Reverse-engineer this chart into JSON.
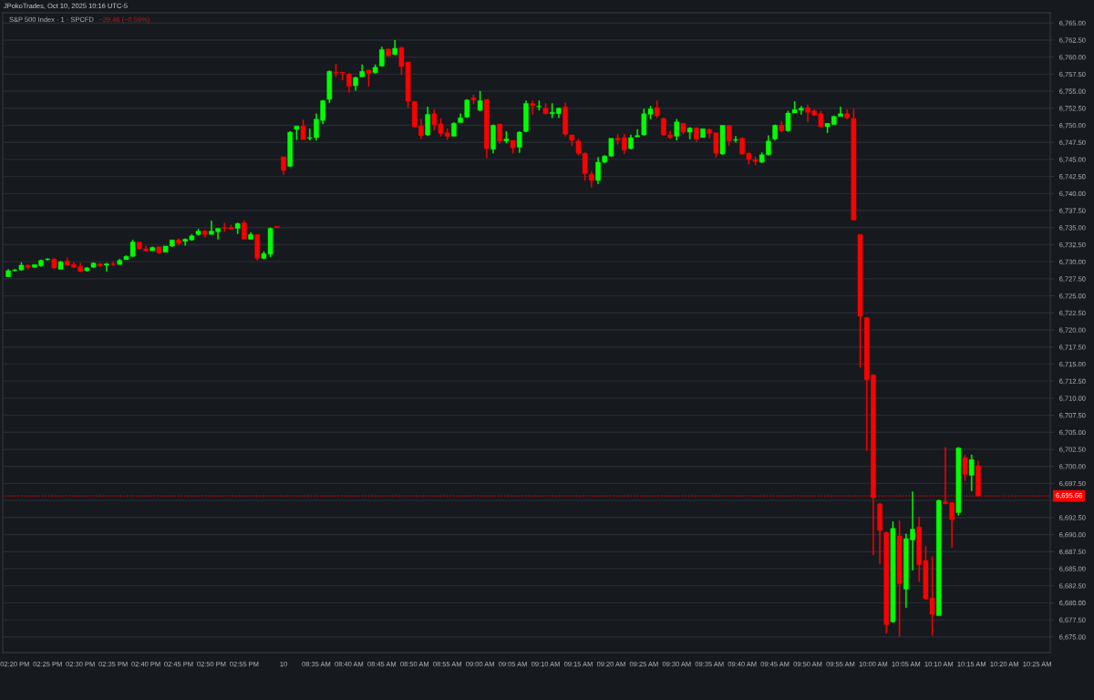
{
  "chart_data": {
    "type": "candlestick",
    "title": "S&P 500 Index · 1 · SPCFD",
    "subtitle": "−39.46 (−0.59%)",
    "annotations": [
      "JPokoTrades, Oct 10, 2025 10:16 UTC-5"
    ],
    "categories": [
      null,
      "02:20 PM",
      null,
      null,
      null,
      null,
      "02:25 PM",
      null,
      null,
      null,
      null,
      "02:30 PM",
      null,
      null,
      null,
      null,
      "02:35 PM",
      null,
      null,
      null,
      null,
      "02:40 PM",
      null,
      null,
      null,
      null,
      "02:45 PM",
      null,
      null,
      null,
      null,
      "02:50 PM",
      null,
      null,
      null,
      null,
      "02:55 PM",
      null,
      null,
      null,
      null,
      null,
      "10",
      null,
      null,
      null,
      null,
      "08:35 AM",
      null,
      null,
      null,
      null,
      "08:40 AM",
      null,
      null,
      null,
      null,
      "08:45 AM",
      null,
      null,
      null,
      null,
      "08:50 AM",
      null,
      null,
      null,
      null,
      "08:55 AM",
      null,
      null,
      null,
      null,
      "09:00 AM",
      null,
      null,
      null,
      null,
      "09:05 AM",
      null,
      null,
      null,
      null,
      "09:10 AM",
      null,
      null,
      null,
      null,
      "09:15 AM",
      null,
      null,
      null,
      null,
      "09:20 AM",
      null,
      null,
      null,
      null,
      "09:25 AM",
      null,
      null,
      null,
      null,
      "09:30 AM",
      null,
      null,
      null,
      null,
      "09:35 AM",
      null,
      null,
      null,
      null,
      "09:40 AM",
      null,
      null,
      null,
      null,
      "09:45 AM",
      null,
      null,
      null,
      null,
      "09:50 AM",
      null,
      null,
      null,
      null,
      "09:55 AM",
      null,
      null,
      null,
      null,
      "10:00 AM",
      null,
      null,
      null,
      null,
      "10:05 AM",
      null,
      null,
      null,
      null,
      "10:10 AM",
      null,
      null,
      null,
      null,
      "10:15 AM",
      null,
      null,
      null,
      null,
      "10:20 AM",
      null,
      null,
      null,
      null,
      "10:25 AM",
      null,
      null
    ],
    "ohlc": [
      [
        6727.8,
        6728.9,
        6727.8,
        6728.7
      ],
      [
        6728.7,
        6728.9,
        6728.6,
        6728.8
      ],
      [
        6728.8,
        6729.9,
        6728.7,
        6729.5
      ],
      [
        6729.5,
        6729.6,
        6728.9,
        6729.2
      ],
      [
        6729.2,
        6729.6,
        6729.1,
        6729.6
      ],
      [
        6729.4,
        6730.3,
        6729.3,
        6730.2
      ],
      [
        6730.3,
        6730.5,
        6730.2,
        6730.4
      ],
      [
        6730.4,
        6730.5,
        6729.0,
        6729.1
      ],
      [
        6728.9,
        6730.1,
        6728.9,
        6730.0
      ],
      [
        6730.1,
        6730.6,
        6729.4,
        6729.5
      ],
      [
        6729.6,
        6729.9,
        6729.1,
        6729.2
      ],
      [
        6729.3,
        6729.8,
        6728.5,
        6728.6
      ],
      [
        6728.7,
        6729.2,
        6728.6,
        6729.1
      ],
      [
        6729.2,
        6729.9,
        6729.1,
        6729.8
      ],
      [
        6729.7,
        6729.8,
        6729.3,
        6729.4
      ],
      [
        6729.5,
        6729.8,
        6728.6,
        6729.7
      ],
      [
        6729.7,
        6730.0,
        6729.4,
        6729.6
      ],
      [
        6729.6,
        6730.4,
        6729.6,
        6730.2
      ],
      [
        6730.3,
        6730.9,
        6730.3,
        6730.8
      ],
      [
        6730.8,
        6733.2,
        6730.7,
        6732.9
      ],
      [
        6732.9,
        6732.9,
        6731.8,
        6731.9
      ],
      [
        6731.9,
        6732.3,
        6731.5,
        6731.6
      ],
      [
        6731.6,
        6732.2,
        6731.6,
        6732.1
      ],
      [
        6732.2,
        6732.2,
        6731.2,
        6731.3
      ],
      [
        6731.4,
        6732.3,
        6731.4,
        6732.3
      ],
      [
        6732.3,
        6733.2,
        6732.2,
        6733.2
      ],
      [
        6733.2,
        6733.4,
        6732.4,
        6732.7
      ],
      [
        6733.0,
        6733.4,
        6732.4,
        6733.3
      ],
      [
        6733.2,
        6734.0,
        6733.1,
        6733.8
      ],
      [
        6734.0,
        6734.8,
        6733.9,
        6734.5
      ],
      [
        6734.5,
        6734.6,
        6733.6,
        6734.0
      ],
      [
        6734.0,
        6736.0,
        6734.0,
        6734.5
      ],
      [
        6734.4,
        6734.9,
        6733.3,
        6734.9
      ],
      [
        6735.0,
        6735.7,
        6734.4,
        6734.9
      ],
      [
        6735.0,
        6735.4,
        6734.7,
        6734.8
      ],
      [
        6734.9,
        6735.7,
        6734.1,
        6735.6
      ],
      [
        6735.7,
        6736.0,
        6733.3,
        6733.3
      ],
      [
        6733.3,
        6734.3,
        6733.3,
        6734.0
      ],
      [
        6734.0,
        6734.0,
        6730.2,
        6730.5
      ],
      [
        6730.5,
        6731.5,
        6730.4,
        6731.2
      ],
      [
        6731.1,
        6735.0,
        6730.7,
        6734.9
      ],
      [
        6735.2,
        6735.2,
        6735.0,
        6735.0
      ],
      [
        6745.4,
        6745.4,
        6742.8,
        6743.4
      ],
      [
        6744.0,
        6749.1,
        6743.9,
        6749.0
      ],
      [
        6749.4,
        6749.9,
        6747.9,
        6749.9
      ],
      [
        6749.9,
        6750.8,
        6747.9,
        6747.9
      ],
      [
        6748.1,
        6749.5,
        6747.8,
        6748.2
      ],
      [
        6748.2,
        6751.7,
        6747.8,
        6750.9
      ],
      [
        6750.7,
        6753.7,
        6750.2,
        6753.6
      ],
      [
        6753.8,
        6758.0,
        6753.3,
        6757.9
      ],
      [
        6757.8,
        6759.0,
        6757.1,
        6757.7
      ],
      [
        6757.8,
        6757.8,
        6756.6,
        6757.7
      ],
      [
        6757.5,
        6757.6,
        6754.8,
        6755.7
      ],
      [
        6755.8,
        6757.1,
        6755.1,
        6757.0
      ],
      [
        6757.1,
        6758.9,
        6757.1,
        6757.9
      ],
      [
        6758.1,
        6758.1,
        6755.7,
        6757.6
      ],
      [
        6757.7,
        6758.9,
        6757.6,
        6758.5
      ],
      [
        6758.7,
        6761.5,
        6758.6,
        6761.1
      ],
      [
        6761.2,
        6761.2,
        6760.1,
        6760.2
      ],
      [
        6760.4,
        6762.5,
        6760.3,
        6761.3
      ],
      [
        6761.4,
        6761.5,
        6757.4,
        6758.6
      ],
      [
        6759.3,
        6759.3,
        6752.6,
        6753.5
      ],
      [
        6753.5,
        6753.5,
        6749.7,
        6749.8
      ],
      [
        6749.9,
        6750.9,
        6748.0,
        6748.5
      ],
      [
        6748.6,
        6752.7,
        6748.5,
        6751.6
      ],
      [
        6751.7,
        6752.3,
        6749.3,
        6750.1
      ],
      [
        6750.2,
        6751.0,
        6748.4,
        6748.8
      ],
      [
        6748.9,
        6749.5,
        6747.9,
        6748.4
      ],
      [
        6748.4,
        6750.4,
        6748.4,
        6750.3
      ],
      [
        6750.4,
        6751.7,
        6750.4,
        6751.1
      ],
      [
        6751.2,
        6753.8,
        6751.1,
        6753.7
      ],
      [
        6754.0,
        6754.5,
        6753.1,
        6753.7
      ],
      [
        6752.2,
        6755.0,
        6752.1,
        6753.6
      ],
      [
        6753.8,
        6753.8,
        6745.2,
        6746.6
      ],
      [
        6746.5,
        6750.1,
        6745.9,
        6750.0
      ],
      [
        6750.2,
        6750.2,
        6747.3,
        6747.7
      ],
      [
        6747.7,
        6749.1,
        6747.4,
        6748.0
      ],
      [
        6747.8,
        6747.8,
        6745.9,
        6746.7
      ],
      [
        6746.8,
        6749.1,
        6746.0,
        6749.0
      ],
      [
        6749.1,
        6753.6,
        6749.0,
        6753.2
      ],
      [
        6753.2,
        6753.6,
        6751.6,
        6752.9
      ],
      [
        6752.7,
        6753.6,
        6752.2,
        6752.8
      ],
      [
        6752.5,
        6753.2,
        6751.6,
        6751.7
      ],
      [
        6751.7,
        6753.2,
        6751.1,
        6751.9
      ],
      [
        6751.7,
        6752.6,
        6751.1,
        6752.5
      ],
      [
        6752.7,
        6753.3,
        6748.4,
        6748.7
      ],
      [
        6748.6,
        6748.6,
        6747.0,
        6747.8
      ],
      [
        6747.7,
        6748.0,
        6745.6,
        6745.9
      ],
      [
        6745.9,
        6746.0,
        6741.9,
        6742.9
      ],
      [
        6742.8,
        6743.2,
        6740.9,
        6741.9
      ],
      [
        6741.9,
        6745.3,
        6741.4,
        6744.6
      ],
      [
        6744.6,
        6745.6,
        6744.5,
        6745.5
      ],
      [
        6745.5,
        6748.1,
        6745.4,
        6748.1
      ],
      [
        6748.1,
        6748.7,
        6747.2,
        6747.8
      ],
      [
        6748.2,
        6748.7,
        6745.8,
        6746.4
      ],
      [
        6746.6,
        6748.6,
        6746.5,
        6748.2
      ],
      [
        6748.3,
        6749.4,
        6748.3,
        6748.5
      ],
      [
        6748.6,
        6752.4,
        6748.5,
        6751.7
      ],
      [
        6751.6,
        6752.8,
        6750.9,
        6752.4
      ],
      [
        6752.6,
        6753.6,
        6751.1,
        6751.4
      ],
      [
        6751.0,
        6751.1,
        6748.5,
        6748.6
      ],
      [
        6748.6,
        6749.2,
        6748.0,
        6748.2
      ],
      [
        6748.4,
        6750.9,
        6747.8,
        6750.5
      ],
      [
        6750.3,
        6750.3,
        6748.7,
        6749.0
      ],
      [
        6749.0,
        6749.7,
        6748.0,
        6749.6
      ],
      [
        6749.6,
        6749.7,
        6747.6,
        6748.0
      ],
      [
        6748.2,
        6749.5,
        6748.2,
        6749.5
      ],
      [
        6749.4,
        6749.5,
        6748.1,
        6748.8
      ],
      [
        6748.9,
        6748.9,
        6745.3,
        6745.9
      ],
      [
        6745.8,
        6750.0,
        6745.7,
        6750.0
      ],
      [
        6750.0,
        6750.0,
        6747.0,
        6747.7
      ],
      [
        6747.8,
        6748.4,
        6747.5,
        6747.9
      ],
      [
        6748.1,
        6748.2,
        6745.7,
        6745.8
      ],
      [
        6745.9,
        6746.0,
        6744.3,
        6745.0
      ],
      [
        6745.0,
        6745.4,
        6744.2,
        6744.7
      ],
      [
        6744.6,
        6746.0,
        6744.5,
        6745.7
      ],
      [
        6745.7,
        6748.5,
        6745.6,
        6747.7
      ],
      [
        6748.0,
        6750.1,
        6747.8,
        6750.0
      ],
      [
        6750.0,
        6750.6,
        6749.0,
        6749.2
      ],
      [
        6749.2,
        6752.1,
        6749.1,
        6751.8
      ],
      [
        6751.8,
        6753.5,
        6751.8,
        6752.3
      ],
      [
        6752.2,
        6752.8,
        6751.6,
        6752.5
      ],
      [
        6752.6,
        6753.0,
        6750.5,
        6751.9
      ],
      [
        6752.1,
        6752.3,
        6751.4,
        6751.5
      ],
      [
        6751.7,
        6752.1,
        6749.7,
        6749.8
      ],
      [
        6749.8,
        6750.3,
        6748.9,
        6750.3
      ],
      [
        6750.1,
        6751.4,
        6750.1,
        6751.3
      ],
      [
        6751.3,
        6752.7,
        6751.3,
        6751.7
      ],
      [
        6751.7,
        6752.3,
        6750.9,
        6751.1
      ],
      [
        6751.0,
        6752.4,
        6736.1,
        6736.1
      ],
      [
        6734.0,
        6734.0,
        6714.5,
        6722.0
      ],
      [
        6721.8,
        6721.9,
        6702.3,
        6712.7
      ],
      [
        6713.4,
        6713.5,
        6687.0,
        6695.4
      ],
      [
        6694.5,
        6694.6,
        6685.7,
        6690.6
      ],
      [
        6690.3,
        6690.4,
        6675.5,
        6676.8
      ],
      [
        6677.2,
        6691.9,
        6677.1,
        6690.9
      ],
      [
        6689.8,
        6692.0,
        6675.1,
        6682.8
      ],
      [
        6682.0,
        6690.1,
        6679.3,
        6689.4
      ],
      [
        6689.2,
        6696.3,
        6684.8,
        6690.8
      ],
      [
        6691.1,
        6692.6,
        6683.1,
        6685.6
      ],
      [
        6686.2,
        6688.3,
        6680.5,
        6680.6
      ],
      [
        6680.7,
        6686.8,
        6675.2,
        6678.3
      ],
      [
        6678.1,
        6695.1,
        6678.1,
        6695.0
      ],
      [
        6694.8,
        6702.8,
        6694.5,
        6694.5
      ],
      [
        6694.7,
        6694.7,
        6688.1,
        6692.2
      ],
      [
        6693.2,
        6702.8,
        6692.8,
        6702.7
      ],
      [
        6701.3,
        6701.7,
        6697.9,
        6698.8
      ],
      [
        6698.7,
        6701.7,
        6696.4,
        6701.0
      ],
      [
        6700.1,
        6700.8,
        6695.6,
        6695.66
      ],
      null,
      null,
      null,
      null,
      null,
      null,
      null,
      null,
      null,
      null,
      null
    ],
    "colors": [
      "#00ff00",
      "#00ff00",
      "#00ff00",
      "#ff0000",
      "#00ff00",
      "#00ff00",
      "#00ff00",
      "#ff0000",
      "#00ff00",
      "#ff0000",
      "#ff0000",
      "#ff0000",
      "#00ff00",
      "#00ff00",
      "#ff0000",
      "#00ff00",
      "#ff0000",
      "#00ff00",
      "#00ff00",
      "#00ff00",
      "#ff0000",
      "#ff0000",
      "#00ff00",
      "#ff0000",
      "#00ff00",
      "#00ff00",
      "#ff0000",
      "#00ff00",
      "#00ff00",
      "#00ff00",
      "#ff0000",
      "#00ff00",
      "#00ff00",
      "#ff0000",
      "#ff0000",
      "#00ff00",
      "#ff0000",
      "#00ff00",
      "#ff0000",
      "#00ff00",
      "#00ff00",
      "#ff0000",
      "#ff0000",
      "#00ff00",
      "#00ff00",
      "#ff0000",
      "#00ff00",
      "#00ff00",
      "#00ff00",
      "#00ff00",
      "#ff0000",
      "#ff0000",
      "#ff0000",
      "#00ff00",
      "#00ff00",
      "#ff0000",
      "#00ff00",
      "#00ff00",
      "#ff0000",
      "#00ff00",
      "#ff0000",
      "#ff0000",
      "#ff0000",
      "#ff0000",
      "#00ff00",
      "#ff0000",
      "#ff0000",
      "#ff0000",
      "#00ff00",
      "#00ff00",
      "#00ff00",
      "#ff0000",
      "#00ff00",
      "#ff0000",
      "#00ff00",
      "#ff0000",
      "#00ff00",
      "#ff0000",
      "#00ff00",
      "#00ff00",
      "#ff0000",
      "#00ff00",
      "#ff0000",
      "#00ff00",
      "#00ff00",
      "#ff0000",
      "#ff0000",
      "#ff0000",
      "#ff0000",
      "#ff0000",
      "#00ff00",
      "#00ff00",
      "#00ff00",
      "#ff0000",
      "#ff0000",
      "#00ff00",
      "#00ff00",
      "#00ff00",
      "#00ff00",
      "#ff0000",
      "#ff0000",
      "#ff0000",
      "#00ff00",
      "#ff0000",
      "#00ff00",
      "#ff0000",
      "#00ff00",
      "#ff0000",
      "#ff0000",
      "#00ff00",
      "#ff0000",
      "#00ff00",
      "#ff0000",
      "#ff0000",
      "#ff0000",
      "#00ff00",
      "#00ff00",
      "#00ff00",
      "#ff0000",
      "#00ff00",
      "#00ff00",
      "#00ff00",
      "#ff0000",
      "#ff0000",
      "#ff0000",
      "#00ff00",
      "#00ff00",
      "#00ff00",
      "#ff0000",
      "#ff0000",
      "#ff0000",
      "#ff0000",
      "#ff0000",
      "#ff0000",
      "#ff0000",
      "#00ff00",
      "#ff0000",
      "#00ff00",
      "#00ff00",
      "#ff0000",
      "#ff0000",
      "#ff0000",
      "#00ff00",
      "#ff0000",
      "#ff0000",
      "#00ff00",
      "#ff0000",
      "#00ff00",
      "#ff0000",
      null,
      null,
      null,
      null,
      null,
      null,
      null,
      null,
      null,
      null,
      null
    ],
    "ylim": [
      6672.7,
      6766.5
    ],
    "yticks": [
      {
        "value": 6675,
        "label": "6,675.00"
      },
      {
        "value": 6677.5,
        "label": "6,677.50"
      },
      {
        "value": 6680,
        "label": "6,680.00"
      },
      {
        "value": 6682.5,
        "label": "6,682.50"
      },
      {
        "value": 6685,
        "label": "6,685.00"
      },
      {
        "value": 6687.5,
        "label": "6,687.50"
      },
      {
        "value": 6690,
        "label": "6,690.00"
      },
      {
        "value": 6692.5,
        "label": "6,692.50"
      },
      {
        "value": 6695,
        "label": null
      },
      {
        "value": 6697.5,
        "label": "6,697.50"
      },
      {
        "value": 6700,
        "label": "6,700.00"
      },
      {
        "value": 6702.5,
        "label": "6,702.50"
      },
      {
        "value": 6705,
        "label": "6,705.00"
      },
      {
        "value": 6707.5,
        "label": "6,707.50"
      },
      {
        "value": 6710,
        "label": "6,710.00"
      },
      {
        "value": 6712.5,
        "label": "6,712.50"
      },
      {
        "value": 6715,
        "label": "6,715.00"
      },
      {
        "value": 6717.5,
        "label": "6,717.50"
      },
      {
        "value": 6720,
        "label": "6,720.00"
      },
      {
        "value": 6722.5,
        "label": "6,722.50"
      },
      {
        "value": 6725,
        "label": "6,725.00"
      },
      {
        "value": 6727.5,
        "label": "6,727.50"
      },
      {
        "value": 6730,
        "label": "6,730.00"
      },
      {
        "value": 6732.5,
        "label": "6,732.50"
      },
      {
        "value": 6735,
        "label": "6,735.00"
      },
      {
        "value": 6737.5,
        "label": "6,737.50"
      },
      {
        "value": 6740,
        "label": "6,740.00"
      },
      {
        "value": 6742.5,
        "label": "6,742.50"
      },
      {
        "value": 6745,
        "label": "6,745.00"
      },
      {
        "value": 6747.5,
        "label": "6,747.50"
      },
      {
        "value": 6750,
        "label": "6,750.00"
      },
      {
        "value": 6752.5,
        "label": "6,752.50"
      },
      {
        "value": 6755,
        "label": "6,755.00"
      },
      {
        "value": 6757.5,
        "label": "6,757.50"
      },
      {
        "value": 6760,
        "label": "6,760.00"
      },
      {
        "value": 6762.5,
        "label": "6,762.50"
      },
      {
        "value": 6765,
        "label": "6,765.00"
      }
    ],
    "grid": "y",
    "ref_lines": [
      {
        "axis": "y",
        "value": 6695.66,
        "label": "6,695.66",
        "color": "#ff0000",
        "line_style": "dotted"
      }
    ]
  }
}
